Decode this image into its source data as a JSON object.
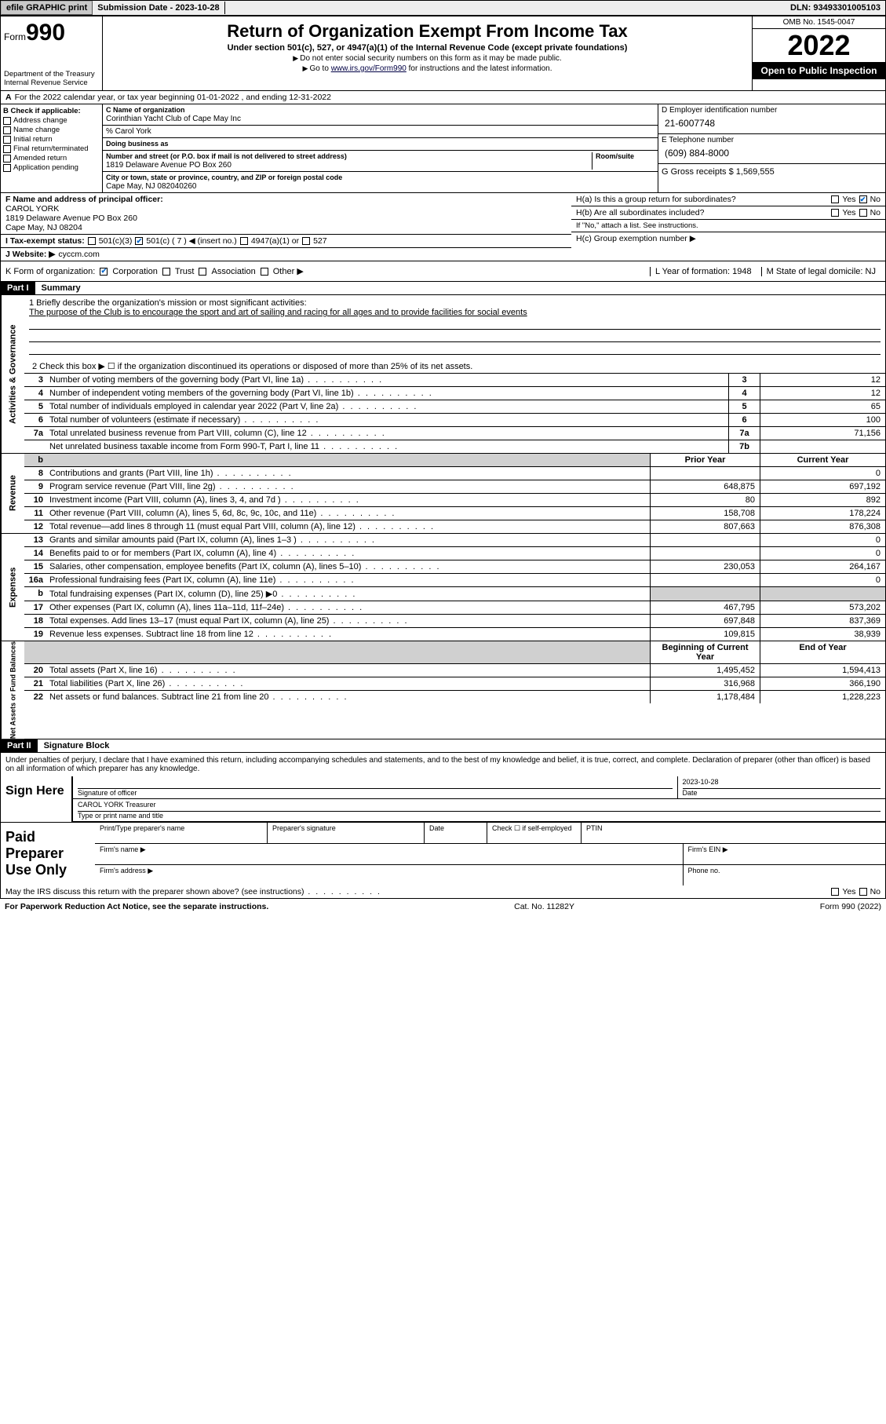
{
  "topbar": {
    "efile": "efile GRAPHIC print",
    "sub_label": "Submission Date",
    "sub_date": "2023-10-28",
    "dln_label": "DLN:",
    "dln": "93493301005103"
  },
  "header": {
    "form_label": "Form",
    "form_no": "990",
    "dept": "Department of the Treasury Internal Revenue Service",
    "title": "Return of Organization Exempt From Income Tax",
    "sub": "Under section 501(c), 527, or 4947(a)(1) of the Internal Revenue Code (except private foundations)",
    "note1": "Do not enter social security numbers on this form as it may be made public.",
    "note2_pre": "Go to ",
    "note2_link": "www.irs.gov/Form990",
    "note2_post": " for instructions and the latest information.",
    "omb": "OMB No. 1545-0047",
    "year": "2022",
    "open": "Open to Public Inspection"
  },
  "lineA": "For the 2022 calendar year, or tax year beginning 01-01-2022   , and ending 12-31-2022",
  "boxB": {
    "hdr": "B Check if applicable:",
    "items": [
      "Address change",
      "Name change",
      "Initial return",
      "Final return/terminated",
      "Amended return",
      "Application pending"
    ]
  },
  "boxC": {
    "lbl_name": "C Name of organization",
    "org": "Corinthian Yacht Club of Cape May Inc",
    "care": "% Carol York",
    "dba_lbl": "Doing business as",
    "street_lbl": "Number and street (or P.O. box if mail is not delivered to street address)",
    "room_lbl": "Room/suite",
    "street": "1819 Delaware Avenue PO Box 260",
    "city_lbl": "City or town, state or province, country, and ZIP or foreign postal code",
    "city": "Cape May, NJ  082040260"
  },
  "boxD": {
    "lbl": "D Employer identification number",
    "val": "21-6007748"
  },
  "boxE": {
    "lbl": "E Telephone number",
    "val": "(609) 884-8000"
  },
  "boxG": {
    "lbl": "G Gross receipts $",
    "val": "1,569,555"
  },
  "boxF": {
    "lbl": "F  Name and address of principal officer:",
    "name": "CAROL YORK",
    "addr1": "1819 Delaware Avenue PO Box 260",
    "addr2": "Cape May, NJ  08204"
  },
  "boxH": {
    "a": "H(a)  Is this a group return for subordinates?",
    "b": "H(b)  Are all subordinates included?",
    "b_note": "If \"No,\" attach a list. See instructions.",
    "c": "H(c)  Group exemption number ▶",
    "yes": "Yes",
    "no": "No"
  },
  "lineI": {
    "lbl": "I   Tax-exempt status:",
    "opts": [
      "501(c)(3)",
      "501(c) ( 7 ) ◀ (insert no.)",
      "4947(a)(1) or",
      "527"
    ]
  },
  "lineJ": {
    "lbl": "J   Website: ▶",
    "val": "cyccm.com"
  },
  "lineK": {
    "lbl": "K Form of organization:",
    "opts": [
      "Corporation",
      "Trust",
      "Association",
      "Other ▶"
    ],
    "l_lbl": "L Year of formation:",
    "l_val": "1948",
    "m_lbl": "M State of legal domicile:",
    "m_val": "NJ"
  },
  "part1": {
    "hdr": "Part I",
    "title": "Summary",
    "mission_lbl": "1   Briefly describe the organization's mission or most significant activities:",
    "mission": "The purpose of the Club is to encourage the sport and art of sailing and racing for all ages and to provide facilities for social events",
    "line2": "2   Check this box ▶ ☐  if the organization discontinued its operations or disposed of more than 25% of its net assets.",
    "gov_rows": [
      {
        "n": "3",
        "d": "Number of voting members of the governing body (Part VI, line 1a)",
        "b": "3",
        "v": "12"
      },
      {
        "n": "4",
        "d": "Number of independent voting members of the governing body (Part VI, line 1b)",
        "b": "4",
        "v": "12"
      },
      {
        "n": "5",
        "d": "Total number of individuals employed in calendar year 2022 (Part V, line 2a)",
        "b": "5",
        "v": "65"
      },
      {
        "n": "6",
        "d": "Total number of volunteers (estimate if necessary)",
        "b": "6",
        "v": "100"
      },
      {
        "n": "7a",
        "d": "Total unrelated business revenue from Part VIII, column (C), line 12",
        "b": "7a",
        "v": "71,156"
      },
      {
        "n": "",
        "d": "Net unrelated business taxable income from Form 990-T, Part I, line 11",
        "b": "7b",
        "v": ""
      }
    ],
    "col_prior": "Prior Year",
    "col_curr": "Current Year",
    "rev_rows": [
      {
        "n": "8",
        "d": "Contributions and grants (Part VIII, line 1h)",
        "p": "",
        "c": "0"
      },
      {
        "n": "9",
        "d": "Program service revenue (Part VIII, line 2g)",
        "p": "648,875",
        "c": "697,192"
      },
      {
        "n": "10",
        "d": "Investment income (Part VIII, column (A), lines 3, 4, and 7d )",
        "p": "80",
        "c": "892"
      },
      {
        "n": "11",
        "d": "Other revenue (Part VIII, column (A), lines 5, 6d, 8c, 9c, 10c, and 11e)",
        "p": "158,708",
        "c": "178,224"
      },
      {
        "n": "12",
        "d": "Total revenue—add lines 8 through 11 (must equal Part VIII, column (A), line 12)",
        "p": "807,663",
        "c": "876,308"
      }
    ],
    "exp_rows": [
      {
        "n": "13",
        "d": "Grants and similar amounts paid (Part IX, column (A), lines 1–3 )",
        "p": "",
        "c": "0"
      },
      {
        "n": "14",
        "d": "Benefits paid to or for members (Part IX, column (A), line 4)",
        "p": "",
        "c": "0"
      },
      {
        "n": "15",
        "d": "Salaries, other compensation, employee benefits (Part IX, column (A), lines 5–10)",
        "p": "230,053",
        "c": "264,167"
      },
      {
        "n": "16a",
        "d": "Professional fundraising fees (Part IX, column (A), line 11e)",
        "p": "",
        "c": "0"
      },
      {
        "n": "b",
        "d": "Total fundraising expenses (Part IX, column (D), line 25) ▶0",
        "p": "shade",
        "c": "shade"
      },
      {
        "n": "17",
        "d": "Other expenses (Part IX, column (A), lines 11a–11d, 11f–24e)",
        "p": "467,795",
        "c": "573,202"
      },
      {
        "n": "18",
        "d": "Total expenses. Add lines 13–17 (must equal Part IX, column (A), line 25)",
        "p": "697,848",
        "c": "837,369"
      },
      {
        "n": "19",
        "d": "Revenue less expenses. Subtract line 18 from line 12",
        "p": "109,815",
        "c": "38,939"
      }
    ],
    "col_beg": "Beginning of Current Year",
    "col_end": "End of Year",
    "na_rows": [
      {
        "n": "20",
        "d": "Total assets (Part X, line 16)",
        "p": "1,495,452",
        "c": "1,594,413"
      },
      {
        "n": "21",
        "d": "Total liabilities (Part X, line 26)",
        "p": "316,968",
        "c": "366,190"
      },
      {
        "n": "22",
        "d": "Net assets or fund balances. Subtract line 21 from line 20",
        "p": "1,178,484",
        "c": "1,228,223"
      }
    ]
  },
  "part2": {
    "hdr": "Part II",
    "title": "Signature Block",
    "note": "Under penalties of perjury, I declare that I have examined this return, including accompanying schedules and statements, and to the best of my knowledge and belief, it is true, correct, and complete. Declaration of preparer (other than officer) is based on all information of which preparer has any knowledge.",
    "sign_here": "Sign Here",
    "sig_of_officer": "Signature of officer",
    "date_lbl": "Date",
    "sig_date": "2023-10-28",
    "officer_name": "CAROL YORK  Treasurer",
    "type_lbl": "Type or print name and title",
    "paid": "Paid Preparer Use Only",
    "pp_name": "Print/Type preparer's name",
    "pp_sig": "Preparer's signature",
    "pp_date": "Date",
    "pp_check": "Check ☐ if self-employed",
    "pp_ptin": "PTIN",
    "firm_name": "Firm's name    ▶",
    "firm_ein": "Firm's EIN ▶",
    "firm_addr": "Firm's address ▶",
    "phone": "Phone no.",
    "discuss": "May the IRS discuss this return with the preparer shown above? (see instructions)",
    "yes": "Yes",
    "no": "No"
  },
  "footer": {
    "left": "For Paperwork Reduction Act Notice, see the separate instructions.",
    "mid": "Cat. No. 11282Y",
    "right": "Form 990 (2022)"
  },
  "vtabs": {
    "gov": "Activities & Governance",
    "rev": "Revenue",
    "exp": "Expenses",
    "na": "Net Assets or Fund Balances"
  }
}
